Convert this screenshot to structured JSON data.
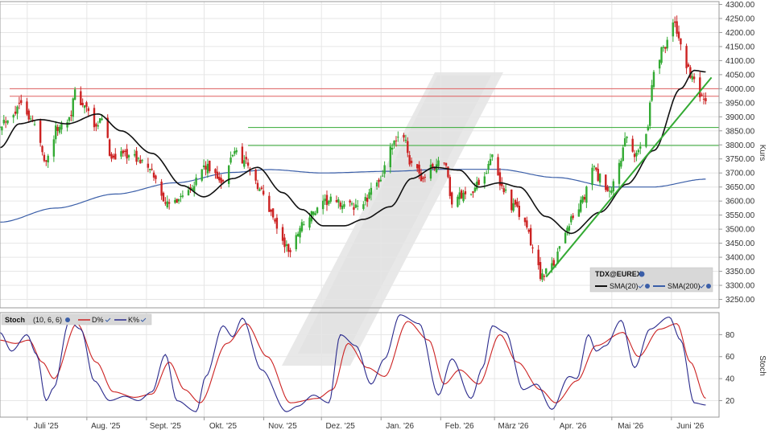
{
  "chart_data": [
    {
      "type": "candlestick",
      "panel": "price",
      "ylabel": "Kurs",
      "ylim": [
        3220,
        4310
      ],
      "y_ticks": [
        "4300.00",
        "4250.00",
        "4200.00",
        "4150.00",
        "4100.00",
        "4050.00",
        "4000.00",
        "3950.00",
        "3900.00",
        "3850.00",
        "3800.00",
        "3750.00",
        "3700.00",
        "3650.00",
        "3600.00",
        "3550.00",
        "3500.00",
        "3450.00",
        "3400.00",
        "3350.00",
        "3300.00",
        "3250.00"
      ],
      "x_labels": [
        "Juli '25",
        "Aug. '25",
        "Sept. '25",
        "Okt. '25",
        "Nov. '25",
        "Dez. '25",
        "Jan. '26",
        "Feb. '26",
        "März '26",
        "Apr. '26",
        "Mai '26",
        "Juni '26"
      ],
      "legend": {
        "symbol": "TDX@EUREX",
        "sma20_label": "SMA(20)",
        "sma200_label": "SMA(200)",
        "placement": "bottom-right"
      },
      "close_anchors": [
        {
          "date": "2025-06-16",
          "value": 3880
        },
        {
          "date": "2025-06-24",
          "value": 3920
        },
        {
          "date": "2025-06-27",
          "value": 3965
        },
        {
          "date": "2025-07-03",
          "value": 3880
        },
        {
          "date": "2025-07-10",
          "value": 3750
        },
        {
          "date": "2025-07-16",
          "value": 3860
        },
        {
          "date": "2025-07-22",
          "value": 3900
        },
        {
          "date": "2025-07-25",
          "value": 3980
        },
        {
          "date": "2025-07-31",
          "value": 3930
        },
        {
          "date": "2025-08-05",
          "value": 3850
        },
        {
          "date": "2025-08-08",
          "value": 3900
        },
        {
          "date": "2025-08-13",
          "value": 3760
        },
        {
          "date": "2025-08-20",
          "value": 3770
        },
        {
          "date": "2025-08-28",
          "value": 3745
        },
        {
          "date": "2025-09-03",
          "value": 3700
        },
        {
          "date": "2025-09-08",
          "value": 3620
        },
        {
          "date": "2025-09-12",
          "value": 3580
        },
        {
          "date": "2025-09-18",
          "value": 3620
        },
        {
          "date": "2025-09-24",
          "value": 3660
        },
        {
          "date": "2025-09-30",
          "value": 3720
        },
        {
          "date": "2025-10-06",
          "value": 3700
        },
        {
          "date": "2025-10-10",
          "value": 3660
        },
        {
          "date": "2025-10-16",
          "value": 3780
        },
        {
          "date": "2025-10-22",
          "value": 3740
        },
        {
          "date": "2025-10-29",
          "value": 3640
        },
        {
          "date": "2025-11-04",
          "value": 3560
        },
        {
          "date": "2025-11-10",
          "value": 3450
        },
        {
          "date": "2025-11-14",
          "value": 3420
        },
        {
          "date": "2025-11-20",
          "value": 3520
        },
        {
          "date": "2025-11-27",
          "value": 3560
        },
        {
          "date": "2025-12-04",
          "value": 3600
        },
        {
          "date": "2025-12-10",
          "value": 3590
        },
        {
          "date": "2025-12-17",
          "value": 3580
        },
        {
          "date": "2025-12-23",
          "value": 3600
        },
        {
          "date": "2025-12-30",
          "value": 3680
        },
        {
          "date": "2026-01-07",
          "value": 3800
        },
        {
          "date": "2026-01-12",
          "value": 3840
        },
        {
          "date": "2026-01-16",
          "value": 3720
        },
        {
          "date": "2026-01-22",
          "value": 3680
        },
        {
          "date": "2026-01-27",
          "value": 3720
        },
        {
          "date": "2026-02-02",
          "value": 3750
        },
        {
          "date": "2026-02-06",
          "value": 3600
        },
        {
          "date": "2026-02-11",
          "value": 3620
        },
        {
          "date": "2026-02-17",
          "value": 3640
        },
        {
          "date": "2026-02-23",
          "value": 3700
        },
        {
          "date": "2026-02-26",
          "value": 3760
        },
        {
          "date": "2026-03-04",
          "value": 3650
        },
        {
          "date": "2026-03-10",
          "value": 3580
        },
        {
          "date": "2026-03-16",
          "value": 3520
        },
        {
          "date": "2026-03-20",
          "value": 3430
        },
        {
          "date": "2026-03-25",
          "value": 3330
        },
        {
          "date": "2026-03-31",
          "value": 3380
        },
        {
          "date": "2026-04-06",
          "value": 3500
        },
        {
          "date": "2026-04-10",
          "value": 3540
        },
        {
          "date": "2026-04-15",
          "value": 3600
        },
        {
          "date": "2026-04-20",
          "value": 3720
        },
        {
          "date": "2026-04-24",
          "value": 3680
        },
        {
          "date": "2026-04-29",
          "value": 3620
        },
        {
          "date": "2026-05-04",
          "value": 3740
        },
        {
          "date": "2026-05-08",
          "value": 3820
        },
        {
          "date": "2026-05-12",
          "value": 3760
        },
        {
          "date": "2026-05-18",
          "value": 3850
        },
        {
          "date": "2026-05-22",
          "value": 4050
        },
        {
          "date": "2026-05-27",
          "value": 4150
        },
        {
          "date": "2026-06-01",
          "value": 4230
        },
        {
          "date": "2026-06-05",
          "value": 4170
        },
        {
          "date": "2026-06-09",
          "value": 4060
        },
        {
          "date": "2026-06-12",
          "value": 4020
        },
        {
          "date": "2026-06-16",
          "value": 3960
        },
        {
          "date": "2026-06-18",
          "value": 3940
        }
      ],
      "sma20_anchors": [
        {
          "date": "2025-06-16",
          "value": 3790
        },
        {
          "date": "2025-06-26",
          "value": 3875
        },
        {
          "date": "2025-07-07",
          "value": 3890
        },
        {
          "date": "2025-07-21",
          "value": 3875
        },
        {
          "date": "2025-08-06",
          "value": 3910
        },
        {
          "date": "2025-08-18",
          "value": 3850
        },
        {
          "date": "2025-09-03",
          "value": 3770
        },
        {
          "date": "2025-09-19",
          "value": 3655
        },
        {
          "date": "2025-09-30",
          "value": 3615
        },
        {
          "date": "2025-10-15",
          "value": 3680
        },
        {
          "date": "2025-10-28",
          "value": 3720
        },
        {
          "date": "2025-11-10",
          "value": 3630
        },
        {
          "date": "2025-11-20",
          "value": 3570
        },
        {
          "date": "2025-12-01",
          "value": 3512
        },
        {
          "date": "2025-12-12",
          "value": 3512
        },
        {
          "date": "2025-12-22",
          "value": 3535
        },
        {
          "date": "2026-01-05",
          "value": 3580
        },
        {
          "date": "2026-01-16",
          "value": 3680
        },
        {
          "date": "2026-01-28",
          "value": 3720
        },
        {
          "date": "2026-02-10",
          "value": 3710
        },
        {
          "date": "2026-02-20",
          "value": 3650
        },
        {
          "date": "2026-03-03",
          "value": 3665
        },
        {
          "date": "2026-03-13",
          "value": 3650
        },
        {
          "date": "2026-03-27",
          "value": 3545
        },
        {
          "date": "2026-04-09",
          "value": 3485
        },
        {
          "date": "2026-04-24",
          "value": 3560
        },
        {
          "date": "2026-05-08",
          "value": 3660
        },
        {
          "date": "2026-05-22",
          "value": 3780
        },
        {
          "date": "2026-06-05",
          "value": 4000
        },
        {
          "date": "2026-06-12",
          "value": 4065
        },
        {
          "date": "2026-06-18",
          "value": 4060
        }
      ],
      "sma200_anchors": [
        {
          "date": "2025-06-16",
          "value": 3525
        },
        {
          "date": "2025-07-15",
          "value": 3575
        },
        {
          "date": "2025-08-15",
          "value": 3625
        },
        {
          "date": "2025-09-15",
          "value": 3665
        },
        {
          "date": "2025-10-15",
          "value": 3702
        },
        {
          "date": "2025-11-03",
          "value": 3712
        },
        {
          "date": "2025-12-01",
          "value": 3700
        },
        {
          "date": "2026-01-05",
          "value": 3706
        },
        {
          "date": "2026-02-02",
          "value": 3713
        },
        {
          "date": "2026-03-02",
          "value": 3713
        },
        {
          "date": "2026-04-01",
          "value": 3684
        },
        {
          "date": "2026-05-01",
          "value": 3650
        },
        {
          "date": "2026-05-21",
          "value": 3650
        },
        {
          "date": "2026-06-18",
          "value": 3678
        }
      ],
      "horizontal_lines": [
        {
          "value": 4000,
          "color": "#e06060"
        },
        {
          "value": 3973,
          "color": "#e06060"
        },
        {
          "value": 3862,
          "color": "#33aa33",
          "from": "2025-10-23"
        },
        {
          "value": 3798,
          "color": "#33aa33",
          "from": "2025-10-23"
        }
      ],
      "trendline": {
        "from": {
          "date": "2026-03-27",
          "value": 3330
        },
        "to": {
          "date": "2026-06-21",
          "value": 4040
        },
        "color": "#33aa33"
      },
      "colors": {
        "up": "#33aa33",
        "down": "#cc2222",
        "sma20": "#111111",
        "sma200": "#3a5ea8"
      }
    },
    {
      "type": "line",
      "panel": "stochastic",
      "ylabel": "Stoch",
      "ylim": [
        5,
        100
      ],
      "y_ticks": [
        "80",
        "60",
        "40",
        "20"
      ],
      "legend": {
        "label": "Stoch",
        "params": "(10, 6, 6)",
        "d_label": "D%",
        "k_label": "K%"
      },
      "series": [
        {
          "name": "K%",
          "color": "#2a2a8c",
          "anchors": [
            {
              "date": "2025-06-16",
              "value": 82
            },
            {
              "date": "2025-06-22",
              "value": 65
            },
            {
              "date": "2025-06-30",
              "value": 80
            },
            {
              "date": "2025-07-05",
              "value": 62
            },
            {
              "date": "2025-07-10",
              "value": 20
            },
            {
              "date": "2025-07-14",
              "value": 32
            },
            {
              "date": "2025-07-22",
              "value": 92
            },
            {
              "date": "2025-07-28",
              "value": 85
            },
            {
              "date": "2025-08-04",
              "value": 38
            },
            {
              "date": "2025-08-12",
              "value": 20
            },
            {
              "date": "2025-08-20",
              "value": 24
            },
            {
              "date": "2025-08-27",
              "value": 20
            },
            {
              "date": "2025-09-03",
              "value": 28
            },
            {
              "date": "2025-09-10",
              "value": 62
            },
            {
              "date": "2025-09-16",
              "value": 20
            },
            {
              "date": "2025-09-26",
              "value": 10
            },
            {
              "date": "2025-10-01",
              "value": 42
            },
            {
              "date": "2025-10-10",
              "value": 88
            },
            {
              "date": "2025-10-15",
              "value": 78
            },
            {
              "date": "2025-10-20",
              "value": 95
            },
            {
              "date": "2025-10-30",
              "value": 48
            },
            {
              "date": "2025-11-12",
              "value": 10
            },
            {
              "date": "2025-11-18",
              "value": 15
            },
            {
              "date": "2025-11-26",
              "value": 25
            },
            {
              "date": "2025-12-04",
              "value": 18
            },
            {
              "date": "2025-12-10",
              "value": 80
            },
            {
              "date": "2025-12-18",
              "value": 70
            },
            {
              "date": "2025-12-26",
              "value": 35
            },
            {
              "date": "2026-01-02",
              "value": 58
            },
            {
              "date": "2026-01-10",
              "value": 98
            },
            {
              "date": "2026-01-20",
              "value": 90
            },
            {
              "date": "2026-01-30",
              "value": 25
            },
            {
              "date": "2026-02-06",
              "value": 58
            },
            {
              "date": "2026-02-16",
              "value": 22
            },
            {
              "date": "2026-02-22",
              "value": 50
            },
            {
              "date": "2026-02-27",
              "value": 88
            },
            {
              "date": "2026-03-06",
              "value": 82
            },
            {
              "date": "2026-03-15",
              "value": 30
            },
            {
              "date": "2026-03-22",
              "value": 35
            },
            {
              "date": "2026-03-30",
              "value": 12
            },
            {
              "date": "2026-04-08",
              "value": 42
            },
            {
              "date": "2026-04-12",
              "value": 40
            },
            {
              "date": "2026-04-18",
              "value": 80
            },
            {
              "date": "2026-04-22",
              "value": 65
            },
            {
              "date": "2026-04-27",
              "value": 70
            },
            {
              "date": "2026-05-05",
              "value": 93
            },
            {
              "date": "2026-05-12",
              "value": 50
            },
            {
              "date": "2026-05-20",
              "value": 85
            },
            {
              "date": "2026-05-30",
              "value": 96
            },
            {
              "date": "2026-06-05",
              "value": 75
            },
            {
              "date": "2026-06-12",
              "value": 18
            },
            {
              "date": "2026-06-18",
              "value": 16
            }
          ]
        },
        {
          "name": "D%",
          "color": "#cc2222",
          "anchors": [
            {
              "date": "2025-06-16",
              "value": 75
            },
            {
              "date": "2025-06-24",
              "value": 72
            },
            {
              "date": "2025-07-01",
              "value": 75
            },
            {
              "date": "2025-07-08",
              "value": 55
            },
            {
              "date": "2025-07-14",
              "value": 40
            },
            {
              "date": "2025-07-26",
              "value": 90
            },
            {
              "date": "2025-08-05",
              "value": 55
            },
            {
              "date": "2025-08-14",
              "value": 28
            },
            {
              "date": "2025-08-25",
              "value": 23
            },
            {
              "date": "2025-09-03",
              "value": 26
            },
            {
              "date": "2025-09-12",
              "value": 55
            },
            {
              "date": "2025-09-20",
              "value": 30
            },
            {
              "date": "2025-09-28",
              "value": 18
            },
            {
              "date": "2025-10-12",
              "value": 72
            },
            {
              "date": "2025-10-22",
              "value": 90
            },
            {
              "date": "2025-11-02",
              "value": 60
            },
            {
              "date": "2025-11-14",
              "value": 18
            },
            {
              "date": "2025-11-28",
              "value": 22
            },
            {
              "date": "2025-12-06",
              "value": 30
            },
            {
              "date": "2025-12-14",
              "value": 72
            },
            {
              "date": "2025-12-24",
              "value": 50
            },
            {
              "date": "2026-01-02",
              "value": 42
            },
            {
              "date": "2026-01-14",
              "value": 92
            },
            {
              "date": "2026-01-25",
              "value": 75
            },
            {
              "date": "2026-02-02",
              "value": 35
            },
            {
              "date": "2026-02-10",
              "value": 48
            },
            {
              "date": "2026-02-20",
              "value": 35
            },
            {
              "date": "2026-03-03",
              "value": 80
            },
            {
              "date": "2026-03-12",
              "value": 55
            },
            {
              "date": "2026-03-24",
              "value": 30
            },
            {
              "date": "2026-04-01",
              "value": 18
            },
            {
              "date": "2026-04-12",
              "value": 38
            },
            {
              "date": "2026-04-22",
              "value": 70
            },
            {
              "date": "2026-05-06",
              "value": 82
            },
            {
              "date": "2026-05-14",
              "value": 60
            },
            {
              "date": "2026-05-25",
              "value": 85
            },
            {
              "date": "2026-06-03",
              "value": 90
            },
            {
              "date": "2026-06-10",
              "value": 55
            },
            {
              "date": "2026-06-18",
              "value": 22
            }
          ]
        }
      ]
    }
  ]
}
